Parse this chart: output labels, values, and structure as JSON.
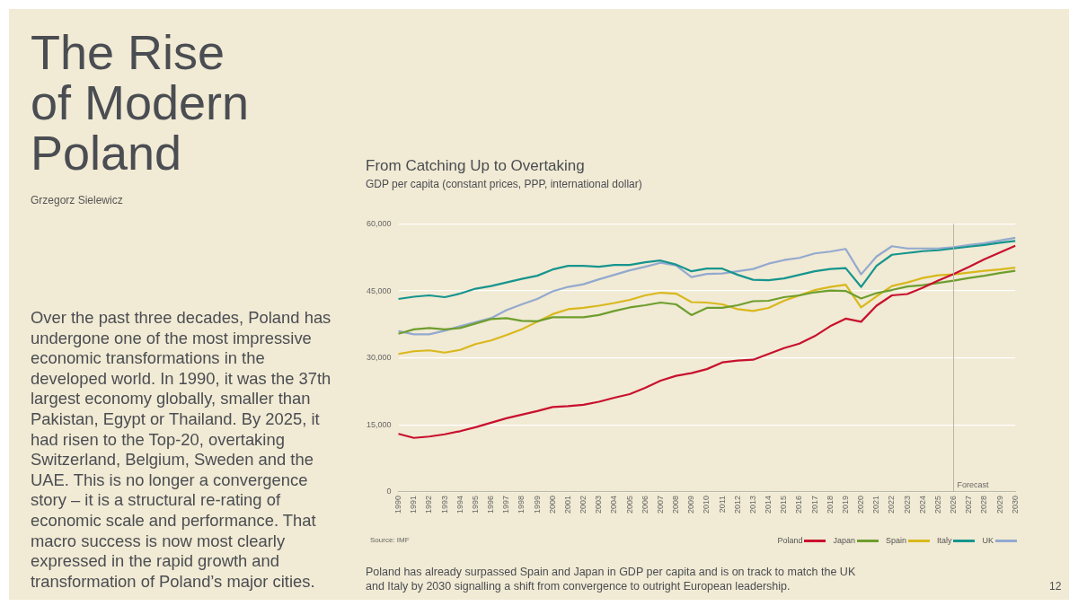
{
  "chart_data": {
    "type": "line",
    "title": "The Rise of Modern Poland",
    "subtitle": "From Catching Up to Overtaking",
    "ylabel": "GDP per capita (constant prices, PPP, international dollar)",
    "categories": [
      "1990",
      "1991",
      "1992",
      "1993",
      "1994",
      "1995",
      "1996",
      "1997",
      "1998",
      "1999",
      "2000",
      "2001",
      "2002",
      "2003",
      "2004",
      "2005",
      "2006",
      "2007",
      "2008",
      "2009",
      "2010",
      "2011",
      "2012",
      "2013",
      "2014",
      "2015",
      "2016",
      "2017",
      "2018",
      "2019",
      "2020",
      "2021",
      "2022",
      "2023",
      "2024",
      "2025",
      "2026",
      "2027",
      "2028",
      "2029",
      "2030"
    ],
    "series": [
      {
        "name": "Poland",
        "color": "#c8102e",
        "values": [
          13000,
          12100,
          12400,
          12900,
          13600,
          14500,
          15500,
          16500,
          17300,
          18100,
          19000,
          19200,
          19500,
          20200,
          21100,
          21900,
          23300,
          24900,
          26000,
          26600,
          27500,
          29000,
          29400,
          29600,
          30900,
          32200,
          33200,
          34900,
          37100,
          38800,
          38100,
          41700,
          44000,
          44300,
          45700,
          47300,
          48800,
          50400,
          52100,
          53600,
          55100
        ]
      },
      {
        "name": "Japan",
        "color": "#6e9e2e",
        "values": [
          35400,
          36400,
          36700,
          36400,
          36700,
          37700,
          38700,
          38900,
          38300,
          38200,
          39100,
          39100,
          39100,
          39600,
          40500,
          41300,
          41800,
          42400,
          42000,
          39600,
          41200,
          41200,
          41800,
          42700,
          42800,
          43600,
          44000,
          44700,
          45100,
          45000,
          43300,
          44500,
          45200,
          46000,
          46300,
          46800,
          47300,
          47900,
          48400,
          49000,
          49500
        ]
      },
      {
        "name": "Spain",
        "color": "#d9b81c",
        "values": [
          30900,
          31500,
          31700,
          31200,
          31800,
          33100,
          33900,
          35100,
          36400,
          38100,
          39800,
          40900,
          41200,
          41700,
          42300,
          43000,
          44000,
          44600,
          44400,
          42500,
          42400,
          42000,
          40900,
          40500,
          41200,
          42800,
          44000,
          45200,
          45900,
          46400,
          41300,
          43800,
          46100,
          46900,
          47900,
          48500,
          48700,
          49100,
          49500,
          49800,
          50200
        ]
      },
      {
        "name": "Italy",
        "color": "#16958e",
        "values": [
          43200,
          43700,
          44000,
          43600,
          44400,
          45500,
          46100,
          46900,
          47700,
          48400,
          49800,
          50600,
          50600,
          50400,
          50800,
          50800,
          51400,
          51800,
          50900,
          49400,
          50000,
          50000,
          48600,
          47500,
          47400,
          47800,
          48600,
          49400,
          49900,
          50100,
          45900,
          50600,
          53100,
          53500,
          53900,
          54100,
          54500,
          54900,
          55300,
          55800,
          56200
        ]
      },
      {
        "name": "UK",
        "color": "#93a9cf",
        "values": [
          36000,
          35300,
          35300,
          36100,
          37100,
          38000,
          38900,
          40700,
          42000,
          43200,
          44900,
          45900,
          46500,
          47600,
          48600,
          49600,
          50400,
          51300,
          50700,
          48100,
          48800,
          48900,
          49400,
          49900,
          51100,
          51900,
          52400,
          53400,
          53800,
          54400,
          48700,
          52700,
          55000,
          54500,
          54500,
          54500,
          54800,
          55300,
          55700,
          56300,
          56900
        ]
      }
    ],
    "ylim": [
      0,
      60000
    ],
    "yticks": [
      0,
      {
        "value": 15000,
        "label": "15,000"
      },
      {
        "value": 30000,
        "label": "30,000"
      },
      {
        "value": 45000,
        "label": "45,000"
      },
      {
        "value": 60000,
        "label": "60,000"
      }
    ],
    "grid": "y",
    "legend": "bottom right",
    "marker": "none",
    "line_style": "solid",
    "ref_lines": [
      {
        "axis": "x",
        "value": "2026",
        "label": "Forecast",
        "color": "#b8b4a4"
      }
    ],
    "annotations": [
      "Grzegorz Sielewicz",
      "Over the past three decades, Poland has undergone one of the most impressive economic transformations in the developed world. In 1990, it was the 37th largest economy globally, smaller than Pakistan, Egypt or Thailand. By 2025, it had risen to the Top-20, overtaking Switzerland, Belgium, Sweden and the UAE. This is no longer a convergence story – it is a structural re-rating of economic scale and performance. That macro success is now most clearly expressed in the rapid growth and transformation of Poland’s major cities.",
      "Source: IMF",
      "Poland has already surpassed Spain and Japan in GDP per capita and is on track to match the UK and Italy by 2030 signalling a shift from convergence to outright European leadership.",
      "12"
    ]
  }
}
